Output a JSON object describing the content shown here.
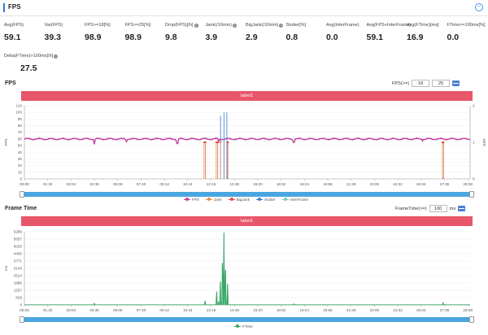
{
  "header": {
    "title": "FPS",
    "toggle": "−"
  },
  "metrics": [
    {
      "label": "Avg(FPS)",
      "value": "59.1",
      "help": false
    },
    {
      "label": "Var(FPS)",
      "value": "39.3",
      "help": false
    },
    {
      "label": "FPS>=18[%]",
      "value": "98.9",
      "help": false
    },
    {
      "label": "FPS>=25[%]",
      "value": "98.9",
      "help": false
    },
    {
      "label": "Drop(FPS)[/h]",
      "value": "9.8",
      "help": true
    },
    {
      "label": "Jank(/10min)",
      "value": "3.9",
      "help": true
    },
    {
      "label": "BigJank(/10min)",
      "value": "2.9",
      "help": true
    },
    {
      "label": "Stutter[%]",
      "value": "0.8",
      "help": false
    },
    {
      "label": "Avg(InterFrame)",
      "value": "0.0",
      "help": false
    },
    {
      "label": "Avg(FPS+InterFrame)",
      "value": "59.1",
      "help": false
    },
    {
      "label": "Avg(FTime)[ms]",
      "value": "16.9",
      "help": false
    },
    {
      "label": "FTime>=100ms[%]",
      "value": "0.0",
      "help": false
    },
    {
      "label": "Delta(FTime)>100ms[/h]",
      "value": "27.5",
      "help": true
    }
  ],
  "fps_section": {
    "title": "FPS",
    "control_label": "FPS(>=)",
    "threshold_1": "18",
    "threshold_2": "25",
    "label_bar": "label1",
    "legend": [
      {
        "name": "FPS",
        "color": "#c43ea0"
      },
      {
        "name": "Jank",
        "color": "#f08a3c"
      },
      {
        "name": "BigJank",
        "color": "#e34d4d"
      },
      {
        "name": "Stutter",
        "color": "#3a7dd4"
      },
      {
        "name": "InterFrame",
        "color": "#7dcbb8"
      }
    ]
  },
  "ftime_section": {
    "title": "Frame Time",
    "control_label": "FrameTime(>=)",
    "threshold": "100",
    "unit": "ms",
    "label_bar": "label1",
    "legend": [
      {
        "name": "FTime",
        "color": "#3aa86a"
      }
    ]
  },
  "chart_data": [
    {
      "type": "line",
      "title": "FPS",
      "xlabel": "",
      "ylabel": "FPS",
      "y2label": "Jank",
      "ylim": [
        0,
        110
      ],
      "y2lim": [
        0,
        2
      ],
      "yticks": [
        "0",
        "10",
        "20",
        "30",
        "40",
        "50",
        "60",
        "70",
        "80",
        "90",
        "100",
        "110"
      ],
      "y2ticks": [
        "0",
        "1",
        "2"
      ],
      "x_ticks": [
        "00:00",
        "01:32",
        "03:04",
        "04:36",
        "06:08",
        "07:40",
        "09:12",
        "10:44",
        "12:16",
        "13:48",
        "15:20",
        "16:52",
        "18:24",
        "19:56",
        "21:28",
        "23:00",
        "24:32",
        "26:04",
        "27:36",
        "29:08"
      ],
      "x_range_seconds": [
        0,
        1836
      ],
      "series": [
        {
          "name": "FPS",
          "color": "#c43ea0",
          "baseline": 60,
          "dips": [
            {
              "t": 288,
              "v": 52
            },
            {
              "t": 420,
              "v": 56
            },
            {
              "t": 630,
              "v": 53
            },
            {
              "t": 800,
              "v": 56
            },
            {
              "t": 1110,
              "v": 55
            },
            {
              "t": 1640,
              "v": 57
            }
          ]
        },
        {
          "name": "Jank",
          "color": "#f08a3c",
          "points": [
            {
              "t": 740,
              "v": 1
            },
            {
              "t": 790,
              "v": 1
            },
            {
              "t": 808,
              "v": 1
            },
            {
              "t": 836,
              "v": 1
            },
            {
              "t": 1722,
              "v": 1
            }
          ]
        },
        {
          "name": "BigJank",
          "color": "#e34d4d",
          "points": [
            {
              "t": 745,
              "v": 1
            },
            {
              "t": 795,
              "v": 1
            },
            {
              "t": 838,
              "v": 1
            },
            {
              "t": 1726,
              "v": 1
            }
          ]
        },
        {
          "name": "Stutter",
          "color": "#3a7dd4",
          "spikes": [
            {
              "t": 808,
              "v": 95
            },
            {
              "t": 822,
              "v": 100
            },
            {
              "t": 834,
              "v": 100
            },
            {
              "t": 1724,
              "v": 2
            }
          ]
        },
        {
          "name": "InterFrame",
          "color": "#7dcbb8",
          "values": []
        }
      ]
    },
    {
      "type": "line",
      "title": "Frame Time",
      "xlabel": "",
      "ylabel": "ms",
      "ylim": [
        0,
        6286
      ],
      "yticks": [
        "0",
        "629",
        "1257",
        "1886",
        "2514",
        "3143",
        "3771",
        "4400",
        "5028",
        "5657",
        "6286"
      ],
      "x_ticks": [
        "00:00",
        "01:32",
        "03:04",
        "04:36",
        "06:08",
        "07:40",
        "09:12",
        "10:44",
        "12:16",
        "13:48",
        "15:20",
        "16:52",
        "18:24",
        "19:56",
        "21:28",
        "23:00",
        "24:32",
        "26:04",
        "27:36",
        "29:08"
      ],
      "x_range_seconds": [
        0,
        1836
      ],
      "series": [
        {
          "name": "FTime",
          "color": "#3aa86a",
          "baseline": 17,
          "spikes": [
            {
              "t": 288,
              "v": 150
            },
            {
              "t": 745,
              "v": 350
            },
            {
              "t": 792,
              "v": 1150
            },
            {
              "t": 800,
              "v": 300
            },
            {
              "t": 808,
              "v": 2000
            },
            {
              "t": 815,
              "v": 3600
            },
            {
              "t": 822,
              "v": 6200
            },
            {
              "t": 829,
              "v": 3000
            },
            {
              "t": 836,
              "v": 1800
            },
            {
              "t": 1110,
              "v": 100
            },
            {
              "t": 1724,
              "v": 180
            }
          ]
        }
      ]
    }
  ]
}
